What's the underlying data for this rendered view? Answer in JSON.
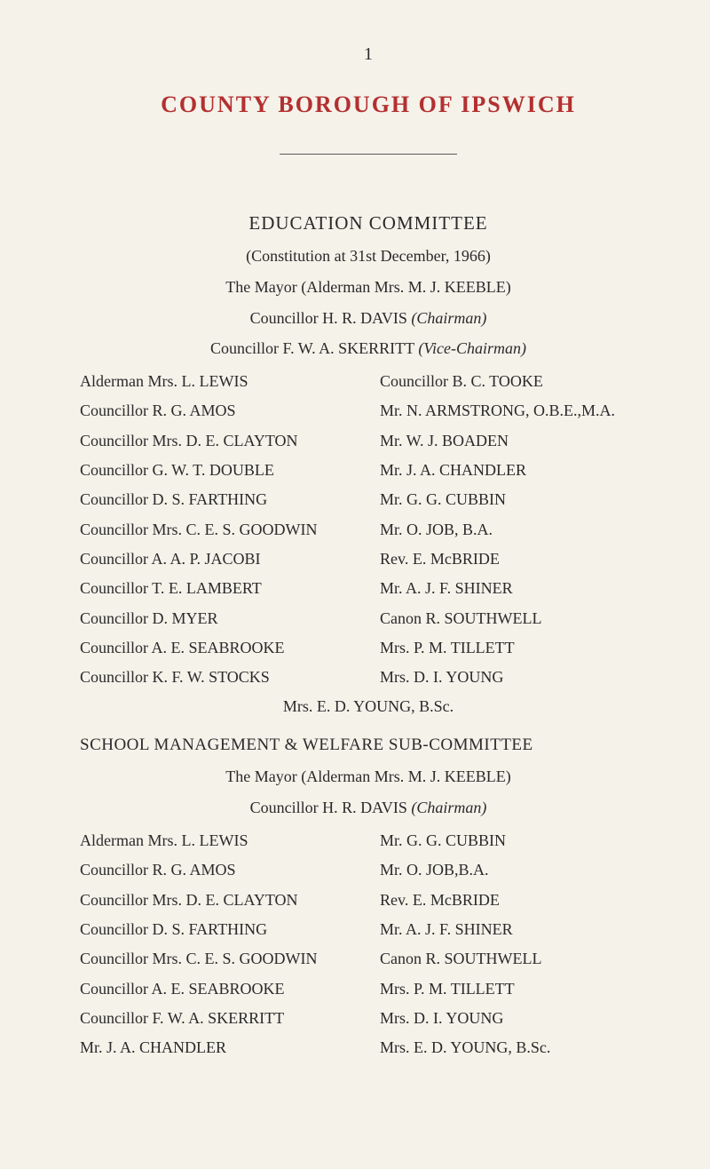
{
  "page_number": "1",
  "main_title": "COUNTY  BOROUGH  OF  IPSWICH",
  "section1": {
    "title": "EDUCATION  COMMITTEE",
    "lines": [
      "(Constitution at 31st December, 1966)",
      "The Mayor (Alderman Mrs. M. J. KEEBLE)"
    ],
    "chairman_name": "Councillor H. R. DAVIS",
    "chairman_role": "(Chairman)",
    "vicechairman_name": "Councillor F. W. A. SKERRITT",
    "vicechairman_role": "(Vice-Chairman)",
    "left": [
      "Alderman Mrs. L. LEWIS",
      "Councillor R. G. AMOS",
      "Councillor Mrs. D. E. CLAYTON",
      "Councillor G. W. T. DOUBLE",
      "Councillor D. S. FARTHING",
      "Councillor Mrs. C. E. S. GOODWIN",
      "Councillor A. A. P. JACOBI",
      "Councillor T. E. LAMBERT",
      "Councillor D. MYER",
      "Councillor A. E. SEABROOKE",
      "Councillor K. F. W. STOCKS"
    ],
    "right": [
      "Councillor B. C. TOOKE",
      "Mr. N. ARMSTRONG, O.B.E.,M.A.",
      "Mr. W. J. BOADEN",
      "Mr. J. A. CHANDLER",
      "Mr. G. G. CUBBIN",
      "Mr. O. JOB, B.A.",
      "Rev. E. McBRIDE",
      "Mr. A. J. F. SHINER",
      "Canon R. SOUTHWELL",
      "Mrs. P. M. TILLETT",
      "Mrs. D. I. YOUNG"
    ],
    "last": "Mrs. E. D. YOUNG, B.Sc."
  },
  "section2": {
    "title": "SCHOOL MANAGEMENT & WELFARE SUB-COMMITTEE",
    "lines": [
      "The Mayor (Alderman Mrs. M. J. KEEBLE)"
    ],
    "chairman_name": "Councillor H. R. DAVIS",
    "chairman_role": "(Chairman)",
    "left": [
      "Alderman Mrs. L. LEWIS",
      "Councillor R. G. AMOS",
      "Councillor Mrs. D. E. CLAYTON",
      "Councillor D. S. FARTHING",
      "Councillor Mrs. C. E. S. GOODWIN",
      "Councillor A. E. SEABROOKE",
      "Councillor F. W. A. SKERRITT",
      "Mr. J. A. CHANDLER"
    ],
    "right": [
      "Mr.  G. G. CUBBIN",
      "Mr. O. JOB,B.A.",
      "Rev. E. McBRIDE",
      "Mr. A. J. F. SHINER",
      "Canon R. SOUTHWELL",
      "Mrs. P. M. TILLETT",
      "Mrs. D. I. YOUNG",
      "Mrs. E. D. YOUNG, B.Sc."
    ]
  }
}
